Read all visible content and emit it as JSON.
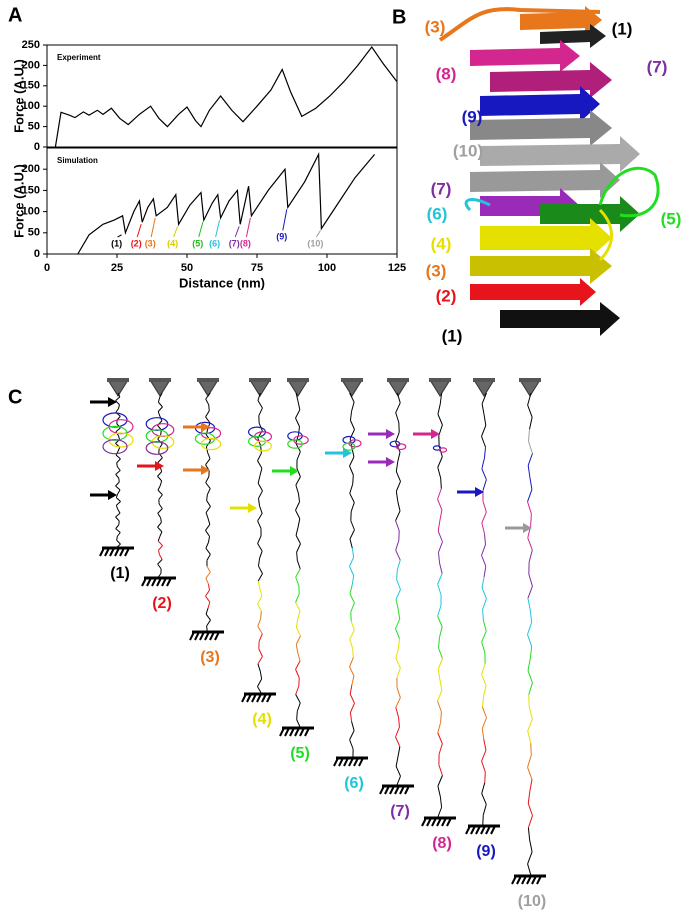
{
  "panel_labels": [
    "A",
    "B",
    "C"
  ],
  "chart_data": [
    {
      "type": "line",
      "title": "Experiment",
      "ylabel": "Force (A.U.)",
      "x": [
        3,
        5,
        8,
        10,
        13,
        15,
        18,
        20,
        23,
        26,
        29,
        33,
        37,
        40,
        43,
        47,
        50,
        53,
        55,
        58,
        62,
        66,
        70,
        75,
        80,
        84,
        87,
        91,
        96,
        101,
        106,
        111,
        116,
        120,
        125
      ],
      "values": [
        0,
        85,
        78,
        72,
        86,
        78,
        90,
        80,
        95,
        70,
        55,
        80,
        100,
        70,
        50,
        80,
        98,
        65,
        50,
        90,
        125,
        90,
        62,
        100,
        140,
        190,
        135,
        75,
        95,
        125,
        160,
        200,
        245,
        205,
        160
      ],
      "color": "#000000",
      "xlim": [
        0,
        125
      ],
      "ylim": [
        0,
        250
      ],
      "yticks": [
        0,
        50,
        100,
        150,
        200,
        250
      ]
    },
    {
      "type": "line",
      "title": "Simulation",
      "ylabel": "Force (A.U.)",
      "xlabel": "Distance (nm)",
      "x": [
        11,
        15,
        20,
        24,
        27,
        28,
        31,
        33,
        34,
        36,
        38,
        39,
        43,
        46,
        47,
        51,
        55,
        56,
        59,
        61,
        62,
        65,
        68,
        69,
        71,
        72,
        73,
        79,
        85,
        86,
        92,
        97,
        98,
        104,
        110,
        117
      ],
      "values": [
        0,
        45,
        70,
        80,
        90,
        50,
        100,
        125,
        75,
        110,
        130,
        90,
        110,
        140,
        70,
        115,
        145,
        80,
        120,
        140,
        85,
        125,
        150,
        70,
        130,
        160,
        90,
        150,
        200,
        110,
        170,
        235,
        60,
        120,
        180,
        235
      ],
      "color": "#000000",
      "xlim": [
        0,
        125
      ],
      "xticks": [
        0,
        25,
        50,
        75,
        100,
        125
      ],
      "ylim": [
        0,
        250
      ],
      "yticks": [
        0,
        50,
        100,
        150,
        200
      ],
      "annotations": [
        {
          "label": "(1)",
          "x": 27,
          "y": 50,
          "color": "#000000"
        },
        {
          "label": "(2)",
          "x": 34,
          "y": 75,
          "color": "#e8141b"
        },
        {
          "label": "(3)",
          "x": 39,
          "y": 90,
          "color": "#e8761b"
        },
        {
          "label": "(4)",
          "x": 47,
          "y": 70,
          "color": "#d8d000"
        },
        {
          "label": "(5)",
          "x": 56,
          "y": 80,
          "color": "#22bb22"
        },
        {
          "label": "(6)",
          "x": 62,
          "y": 85,
          "color": "#22c4dc"
        },
        {
          "label": "(7)",
          "x": 69,
          "y": 70,
          "color": "#7d2ea0"
        },
        {
          "label": "(8)",
          "x": 73,
          "y": 90,
          "color": "#d4268f"
        },
        {
          "label": "(9)",
          "x": 86,
          "y": 110,
          "color": "#1818c0"
        },
        {
          "label": "(10)",
          "x": 98,
          "y": 60,
          "color": "#a0a0a0"
        }
      ]
    }
  ],
  "structure_labels": [
    {
      "text": "(3)",
      "color": "#e8761b"
    },
    {
      "text": "(1)",
      "color": "#000000"
    },
    {
      "text": "(8)",
      "color": "#d4268f"
    },
    {
      "text": "(7)",
      "color": "#7d2ea0"
    },
    {
      "text": "(9)",
      "color": "#1818c0"
    },
    {
      "text": "(10)",
      "color": "#a0a0a0"
    },
    {
      "text": "(7)",
      "color": "#7d2ea0"
    },
    {
      "text": "(6)",
      "color": "#22c4dc"
    },
    {
      "text": "(5)",
      "color": "#22dd22"
    },
    {
      "text": "(4)",
      "color": "#e6e000"
    },
    {
      "text": "(3)",
      "color": "#e8761b"
    },
    {
      "text": "(2)",
      "color": "#e8141b"
    },
    {
      "text": "(1)",
      "color": "#000000"
    }
  ],
  "pulling_labels": [
    {
      "text": "(1)",
      "color": "#000000"
    },
    {
      "text": "(2)",
      "color": "#e8141b"
    },
    {
      "text": "(3)",
      "color": "#e8761b"
    },
    {
      "text": "(4)",
      "color": "#e6e000"
    },
    {
      "text": "(5)",
      "color": "#22dd22"
    },
    {
      "text": "(6)",
      "color": "#22c4dc"
    },
    {
      "text": "(7)",
      "color": "#7d2ea0"
    },
    {
      "text": "(8)",
      "color": "#d4268f"
    },
    {
      "text": "(9)",
      "color": "#1818c0"
    },
    {
      "text": "(10)",
      "color": "#a0a0a0"
    }
  ]
}
